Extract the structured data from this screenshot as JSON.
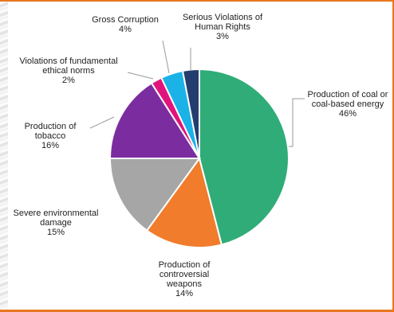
{
  "chart_data": {
    "type": "pie",
    "title": "",
    "slices": [
      {
        "name": "Production of coal or coal-based energy",
        "lines": [
          "Production of coal or",
          "coal-based energy"
        ],
        "value": 46,
        "value_label": "46%",
        "color": "#30ac78"
      },
      {
        "name": "Production of controversial weapons",
        "lines": [
          "Production of",
          "controversial",
          "weapons"
        ],
        "value": 14,
        "value_label": "14%",
        "color": "#f07c2c"
      },
      {
        "name": "Severe environmental damage",
        "lines": [
          "Severe environmental",
          "damage"
        ],
        "value": 15,
        "value_label": "15%",
        "color": "#a6a6a6"
      },
      {
        "name": "Production of tobacco",
        "lines": [
          "Production of",
          "tobacco"
        ],
        "value": 16,
        "value_label": "16%",
        "color": "#7b2d9f"
      },
      {
        "name": "Violations of fundamental ethical norms",
        "lines": [
          "Violations of fundamental",
          "ethical norms"
        ],
        "value": 2,
        "value_label": "2%",
        "color": "#e0157b"
      },
      {
        "name": "Gross Corruption",
        "lines": [
          "Gross Corruption"
        ],
        "value": 4,
        "value_label": "4%",
        "color": "#1bb2e8"
      },
      {
        "name": "Serious Violations of Human Rights",
        "lines": [
          "Serious Violations of",
          "Human Rights"
        ],
        "value": 3,
        "value_label": "3%",
        "color": "#233d6e"
      }
    ]
  }
}
